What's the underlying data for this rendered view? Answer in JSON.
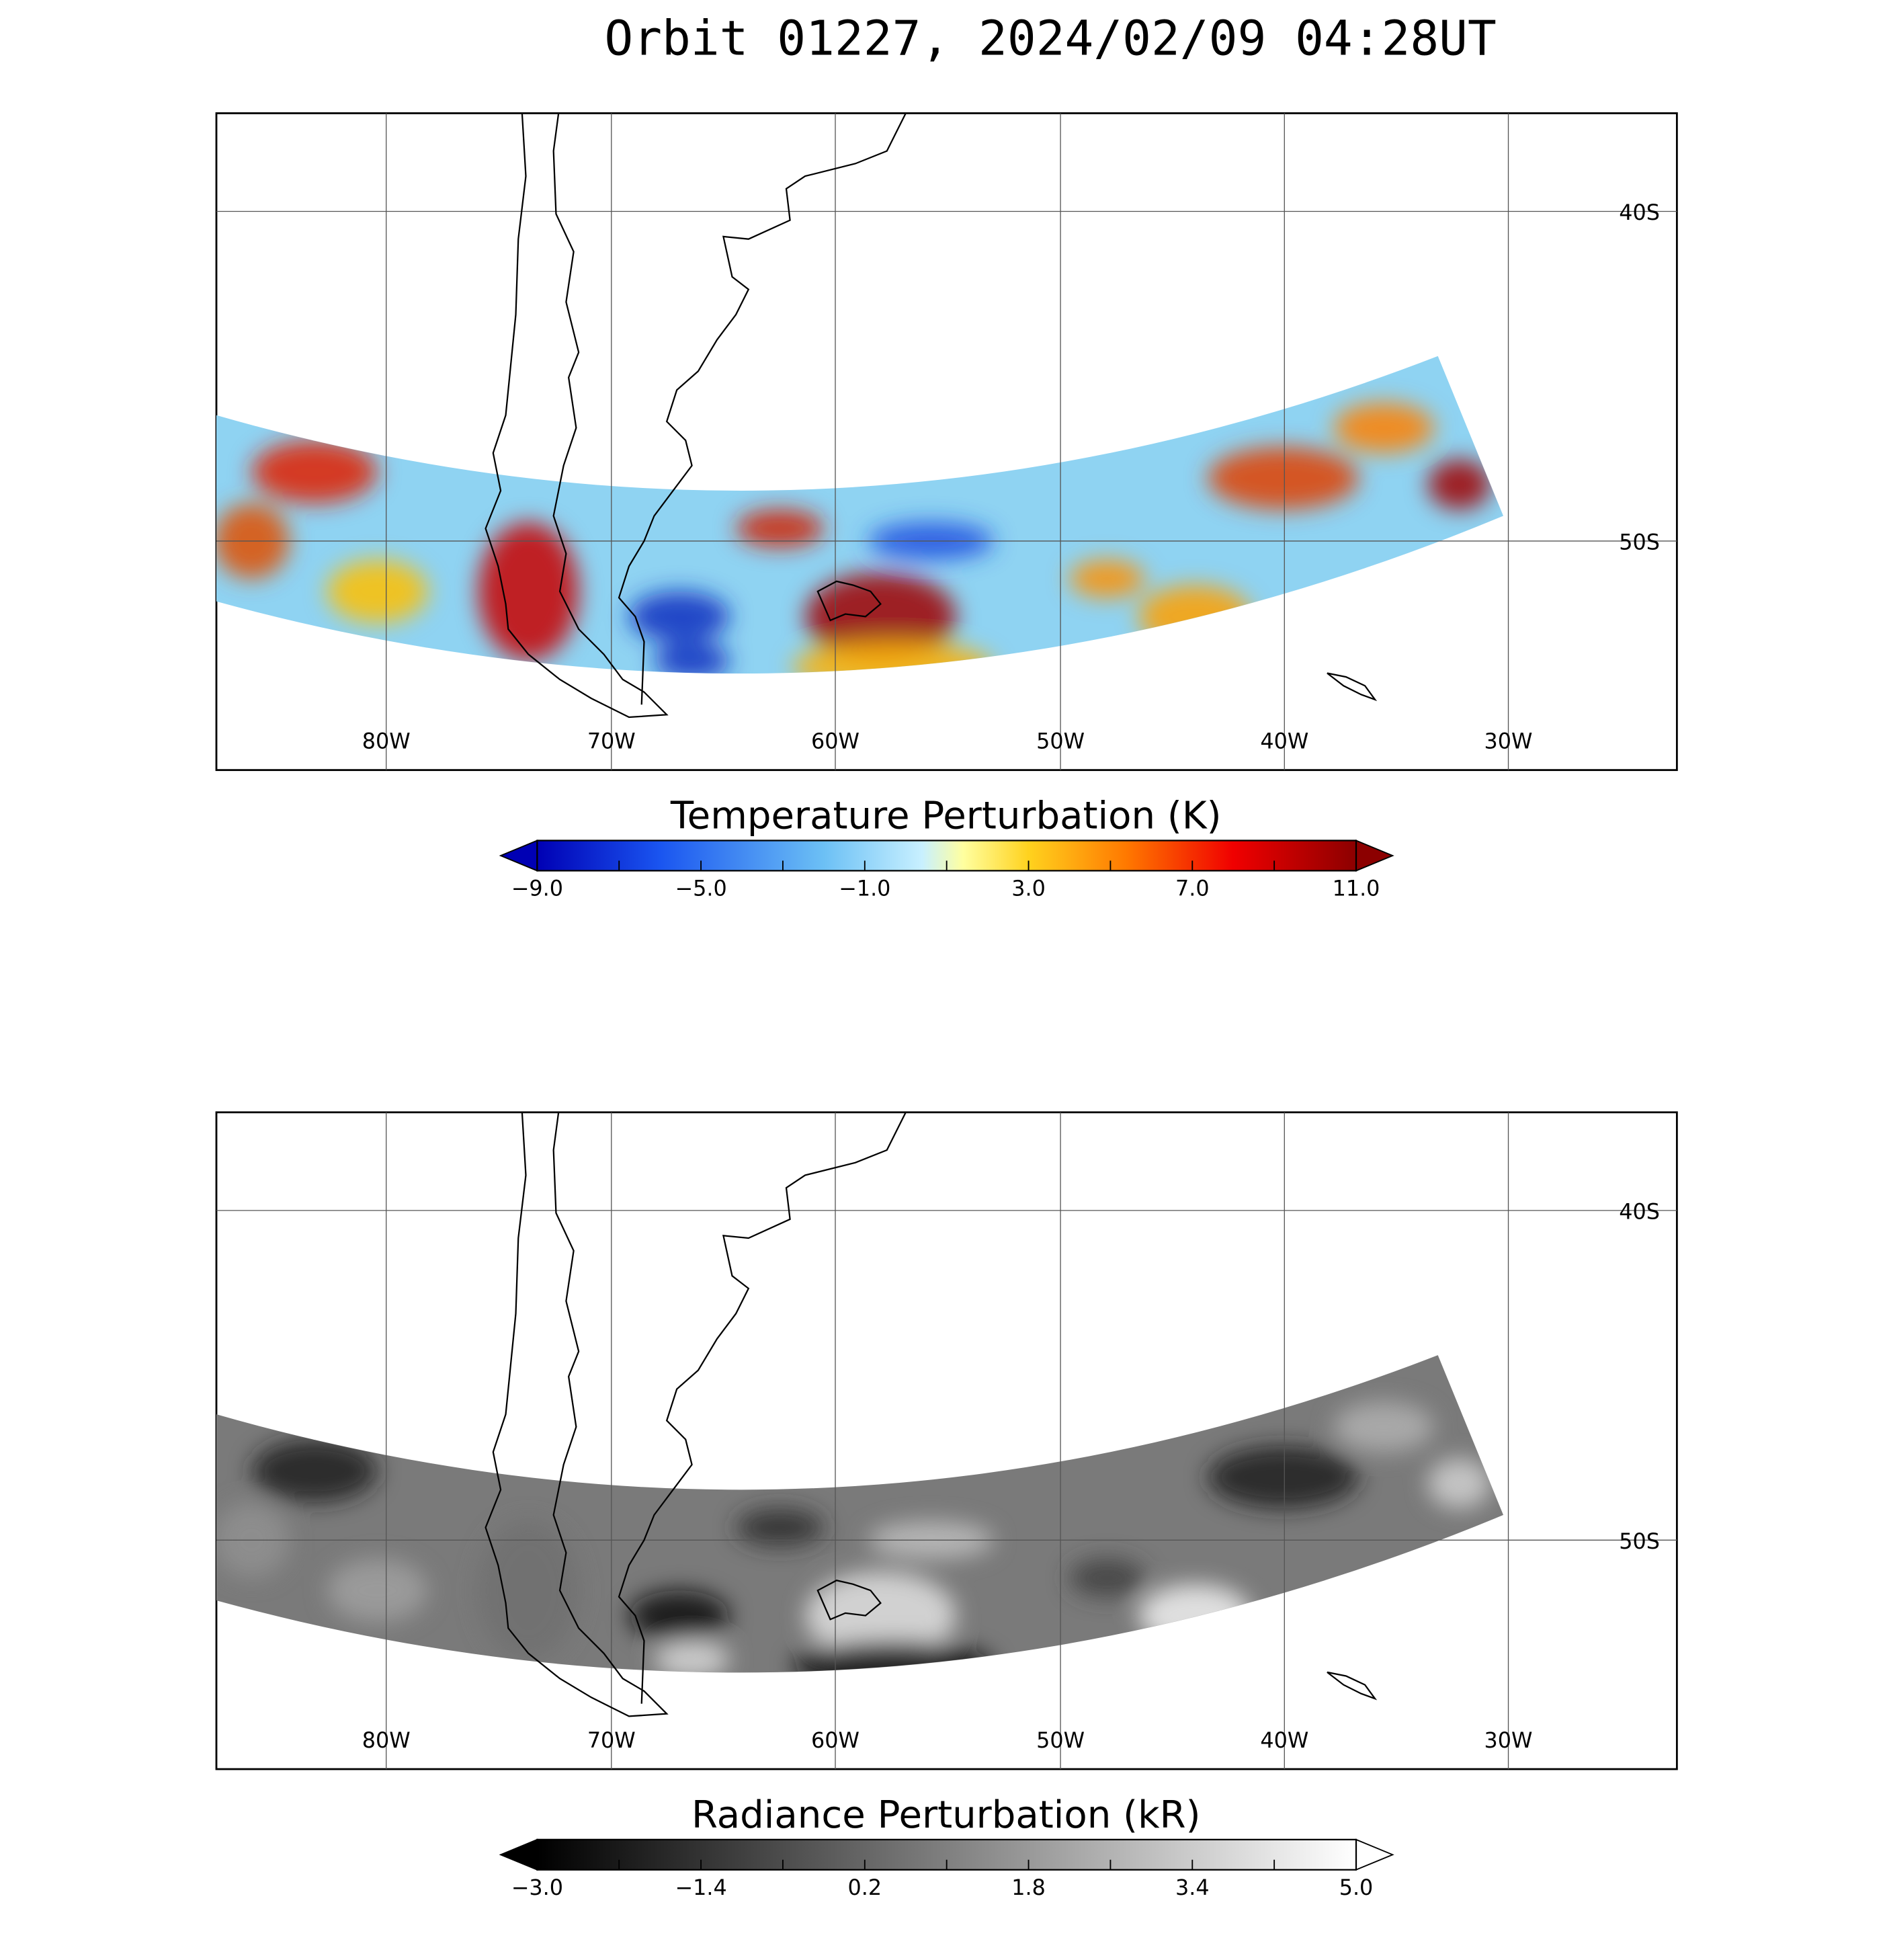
{
  "title": "Orbit 01227, 2024/02/09 04:28UT",
  "panels": [
    {
      "lon_labels": [
        "80W",
        "70W",
        "60W",
        "50W",
        "40W",
        "30W"
      ],
      "lat_labels": [
        "40S",
        "50S"
      ],
      "colorbar": {
        "title": "Temperature Perturbation (K)",
        "tick_labels": [
          "−9.0",
          "−5.0",
          "−1.0",
          "3.0",
          "7.0",
          "11.0"
        ]
      }
    },
    {
      "lon_labels": [
        "80W",
        "70W",
        "60W",
        "50W",
        "40W",
        "30W"
      ],
      "lat_labels": [
        "40S",
        "50S"
      ],
      "colorbar": {
        "title": "Radiance Perturbation (kR)",
        "tick_labels": [
          "−3.0",
          "−1.4",
          "0.2",
          "1.8",
          "3.4",
          "5.0"
        ]
      }
    }
  ]
}
